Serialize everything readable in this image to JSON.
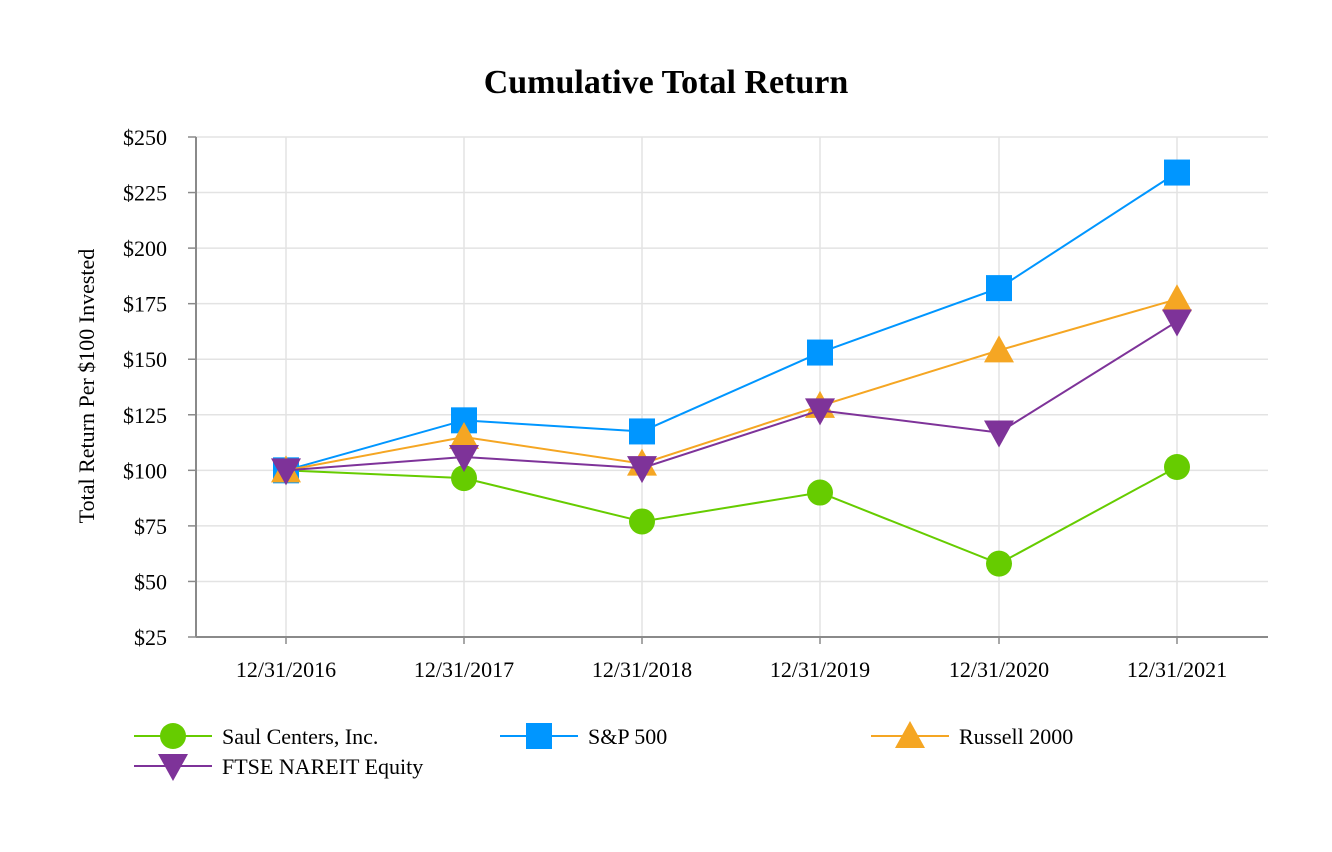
{
  "chart_data": {
    "type": "line",
    "title": "Cumulative Total Return",
    "xlabel": "",
    "ylabel": "Total Return Per $100 Invested",
    "categories": [
      "12/31/2016",
      "12/31/2017",
      "12/31/2018",
      "12/31/2019",
      "12/31/2020",
      "12/31/2021"
    ],
    "ylim": [
      25,
      250
    ],
    "yticks": [
      25,
      50,
      75,
      100,
      125,
      150,
      175,
      200,
      225,
      250
    ],
    "ytick_labels": [
      "$25",
      "$50",
      "$75",
      "$100",
      "$125",
      "$150",
      "$175",
      "$200",
      "$225",
      "$250"
    ],
    "grid": true,
    "legend_position": "bottom",
    "series": [
      {
        "name": "Saul Centers, Inc.",
        "marker": "circle",
        "color": "#66cc00",
        "values": [
          100,
          96.5,
          77,
          90,
          58,
          101.5
        ]
      },
      {
        "name": "S&P 500",
        "marker": "square",
        "color": "#0096ff",
        "values": [
          100,
          122.5,
          117.5,
          153,
          182,
          234
        ]
      },
      {
        "name": "Russell 2000",
        "marker": "triangle-up",
        "color": "#f5a623",
        "values": [
          100,
          115,
          103,
          129,
          154,
          177
        ]
      },
      {
        "name": "FTSE NAREIT Equity",
        "marker": "triangle-down",
        "color": "#7e3399",
        "values": [
          100,
          106,
          101,
          127,
          117,
          167
        ]
      }
    ]
  }
}
